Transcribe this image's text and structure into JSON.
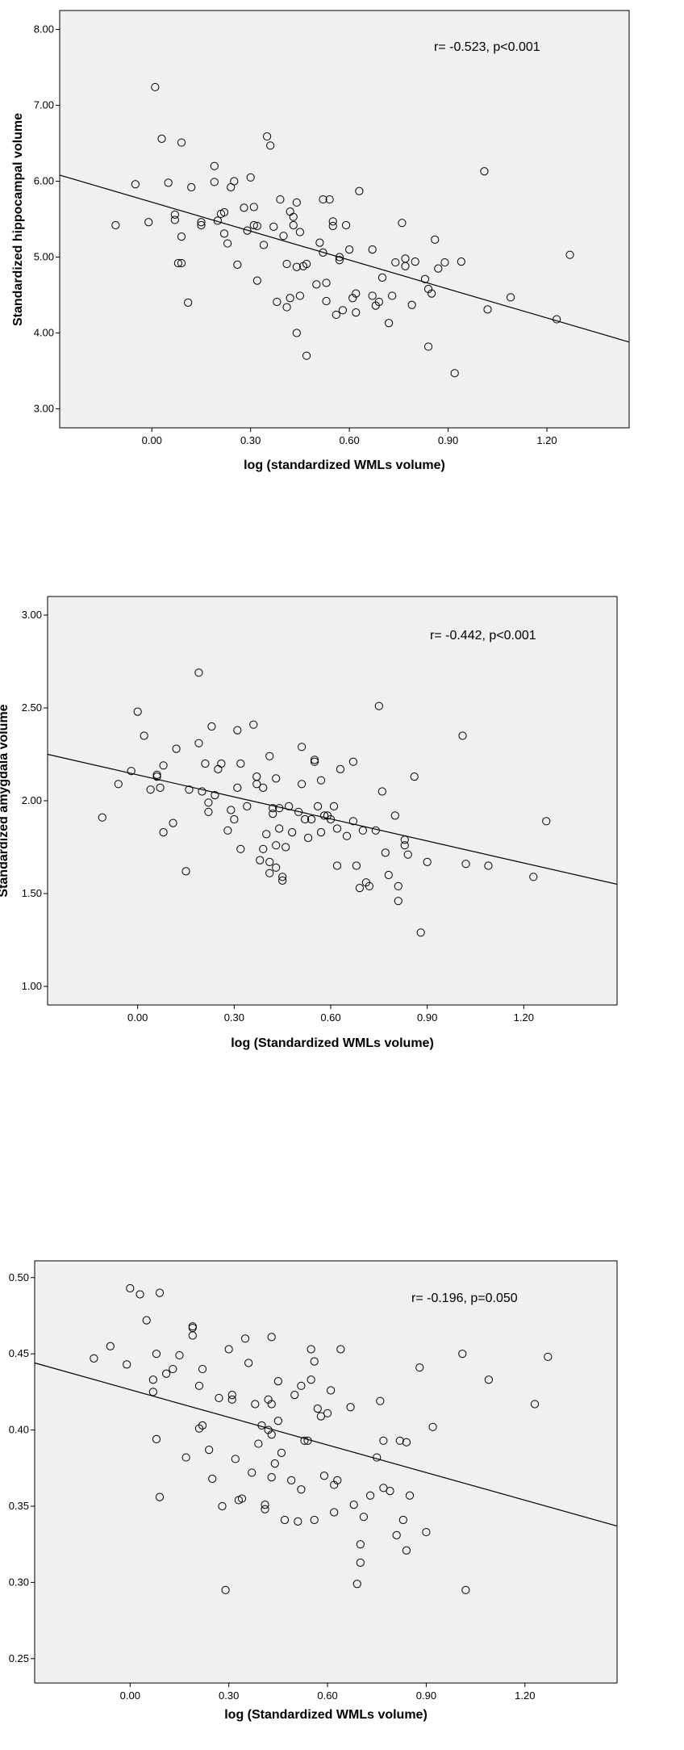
{
  "chart_data": [
    {
      "type": "scatter",
      "xlabel": "log (standardized WMLs volume)",
      "ylabel": "Standardized hippocampal volume",
      "annotation": "r= -0.523, p<0.001",
      "xlim": [
        -0.28,
        1.45
      ],
      "ylim": [
        2.75,
        8.25
      ],
      "xticks": [
        "0.00",
        "0.30",
        "0.60",
        "0.90",
        "1.20"
      ],
      "xtick_values": [
        0.0,
        0.3,
        0.6,
        0.9,
        1.2
      ],
      "yticks": [
        "3.00",
        "4.00",
        "5.00",
        "6.00",
        "7.00",
        "8.00"
      ],
      "ytick_values": [
        3,
        4,
        5,
        6,
        7,
        8
      ],
      "fit_line": [
        [
          -0.28,
          6.08
        ],
        [
          1.45,
          3.88
        ]
      ],
      "grid": false,
      "points": [
        [
          -0.11,
          5.42
        ],
        [
          -0.05,
          5.96
        ],
        [
          -0.01,
          5.46
        ],
        [
          0.01,
          7.24
        ],
        [
          0.03,
          6.56
        ],
        [
          0.05,
          5.98
        ],
        [
          0.07,
          5.56
        ],
        [
          0.07,
          5.49
        ],
        [
          0.08,
          4.92
        ],
        [
          0.09,
          4.92
        ],
        [
          0.09,
          6.51
        ],
        [
          0.09,
          5.27
        ],
        [
          0.11,
          4.4
        ],
        [
          0.12,
          5.92
        ],
        [
          0.15,
          5.42
        ],
        [
          0.15,
          5.46
        ],
        [
          0.19,
          6.2
        ],
        [
          0.19,
          5.99
        ],
        [
          0.2,
          5.48
        ],
        [
          0.21,
          5.57
        ],
        [
          0.22,
          5.59
        ],
        [
          0.22,
          5.31
        ],
        [
          0.23,
          5.18
        ],
        [
          0.24,
          5.92
        ],
        [
          0.25,
          6.0
        ],
        [
          0.26,
          4.9
        ],
        [
          0.28,
          5.65
        ],
        [
          0.29,
          5.35
        ],
        [
          0.3,
          6.05
        ],
        [
          0.31,
          5.42
        ],
        [
          0.31,
          5.66
        ],
        [
          0.32,
          5.41
        ],
        [
          0.32,
          4.69
        ],
        [
          0.34,
          5.16
        ],
        [
          0.35,
          6.59
        ],
        [
          0.36,
          6.47
        ],
        [
          0.37,
          5.4
        ],
        [
          0.38,
          4.41
        ],
        [
          0.39,
          5.76
        ],
        [
          0.4,
          5.28
        ],
        [
          0.41,
          4.91
        ],
        [
          0.41,
          4.34
        ],
        [
          0.42,
          4.46
        ],
        [
          0.42,
          5.6
        ],
        [
          0.43,
          5.53
        ],
        [
          0.43,
          5.42
        ],
        [
          0.44,
          5.72
        ],
        [
          0.44,
          4.0
        ],
        [
          0.44,
          4.87
        ],
        [
          0.45,
          5.33
        ],
        [
          0.45,
          4.49
        ],
        [
          0.46,
          4.88
        ],
        [
          0.47,
          3.7
        ],
        [
          0.47,
          4.91
        ],
        [
          0.5,
          4.64
        ],
        [
          0.51,
          5.19
        ],
        [
          0.52,
          5.06
        ],
        [
          0.52,
          5.76
        ],
        [
          0.53,
          4.66
        ],
        [
          0.53,
          4.42
        ],
        [
          0.54,
          5.76
        ],
        [
          0.55,
          5.47
        ],
        [
          0.55,
          5.41
        ],
        [
          0.56,
          4.24
        ],
        [
          0.57,
          5.0
        ],
        [
          0.57,
          4.96
        ],
        [
          0.58,
          4.3
        ],
        [
          0.59,
          5.42
        ],
        [
          0.6,
          5.1
        ],
        [
          0.61,
          4.46
        ],
        [
          0.62,
          4.27
        ],
        [
          0.62,
          4.52
        ],
        [
          0.63,
          5.87
        ],
        [
          0.67,
          5.1
        ],
        [
          0.67,
          4.49
        ],
        [
          0.68,
          4.36
        ],
        [
          0.69,
          4.41
        ],
        [
          0.7,
          4.73
        ],
        [
          0.72,
          4.13
        ],
        [
          0.73,
          4.49
        ],
        [
          0.74,
          4.93
        ],
        [
          0.76,
          5.45
        ],
        [
          0.77,
          4.98
        ],
        [
          0.77,
          4.88
        ],
        [
          0.79,
          4.37
        ],
        [
          0.8,
          4.94
        ],
        [
          0.83,
          4.71
        ],
        [
          0.84,
          4.58
        ],
        [
          0.84,
          3.82
        ],
        [
          0.85,
          4.52
        ],
        [
          0.86,
          5.23
        ],
        [
          0.87,
          4.85
        ],
        [
          0.89,
          4.93
        ],
        [
          0.92,
          3.47
        ],
        [
          0.94,
          4.94
        ],
        [
          1.01,
          6.13
        ],
        [
          1.02,
          4.31
        ],
        [
          1.09,
          4.47
        ],
        [
          1.23,
          4.18
        ],
        [
          1.27,
          5.03
        ]
      ]
    },
    {
      "type": "scatter",
      "xlabel": "log (Standardized WMLs volume)",
      "ylabel": "Standardized amygdala volume",
      "annotation": "r= -0.442, p<0.001",
      "xlim": [
        -0.28,
        1.49
      ],
      "ylim": [
        0.9,
        3.1
      ],
      "xticks": [
        "0.00",
        "0.30",
        "0.60",
        "0.90",
        "1.20"
      ],
      "xtick_values": [
        0.0,
        0.3,
        0.6,
        0.9,
        1.2
      ],
      "yticks": [
        "1.00",
        "1.50",
        "2.00",
        "2.50",
        "3.00"
      ],
      "ytick_values": [
        1.0,
        1.5,
        2.0,
        2.5,
        3.0
      ],
      "fit_line": [
        [
          -0.28,
          2.25
        ],
        [
          1.49,
          1.55
        ]
      ],
      "grid": false,
      "points": [
        [
          -0.11,
          1.91
        ],
        [
          -0.06,
          2.09
        ],
        [
          -0.02,
          2.16
        ],
        [
          0.0,
          2.48
        ],
        [
          0.02,
          2.35
        ],
        [
          0.04,
          2.06
        ],
        [
          0.06,
          2.14
        ],
        [
          0.06,
          2.13
        ],
        [
          0.07,
          2.07
        ],
        [
          0.08,
          2.19
        ],
        [
          0.08,
          1.83
        ],
        [
          0.11,
          1.88
        ],
        [
          0.12,
          2.28
        ],
        [
          0.15,
          1.62
        ],
        [
          0.16,
          2.06
        ],
        [
          0.19,
          2.69
        ],
        [
          0.19,
          2.31
        ],
        [
          0.2,
          2.05
        ],
        [
          0.21,
          2.2
        ],
        [
          0.22,
          1.94
        ],
        [
          0.22,
          1.99
        ],
        [
          0.23,
          2.4
        ],
        [
          0.24,
          2.03
        ],
        [
          0.25,
          2.17
        ],
        [
          0.26,
          2.2
        ],
        [
          0.28,
          1.84
        ],
        [
          0.29,
          1.95
        ],
        [
          0.3,
          1.9
        ],
        [
          0.31,
          2.07
        ],
        [
          0.31,
          2.38
        ],
        [
          0.32,
          2.2
        ],
        [
          0.32,
          1.74
        ],
        [
          0.34,
          1.97
        ],
        [
          0.36,
          2.41
        ],
        [
          0.37,
          2.13
        ],
        [
          0.37,
          2.09
        ],
        [
          0.38,
          1.68
        ],
        [
          0.39,
          2.07
        ],
        [
          0.39,
          1.74
        ],
        [
          0.4,
          1.82
        ],
        [
          0.41,
          1.67
        ],
        [
          0.41,
          1.61
        ],
        [
          0.41,
          2.24
        ],
        [
          0.42,
          1.96
        ],
        [
          0.42,
          1.93
        ],
        [
          0.43,
          1.76
        ],
        [
          0.43,
          2.12
        ],
        [
          0.43,
          1.64
        ],
        [
          0.44,
          1.96
        ],
        [
          0.44,
          1.85
        ],
        [
          0.45,
          1.57
        ],
        [
          0.45,
          1.59
        ],
        [
          0.46,
          1.75
        ],
        [
          0.47,
          1.97
        ],
        [
          0.48,
          1.83
        ],
        [
          0.5,
          1.94
        ],
        [
          0.51,
          2.09
        ],
        [
          0.51,
          2.29
        ],
        [
          0.52,
          1.9
        ],
        [
          0.53,
          1.8
        ],
        [
          0.54,
          1.9
        ],
        [
          0.55,
          2.21
        ],
        [
          0.55,
          2.22
        ],
        [
          0.56,
          1.97
        ],
        [
          0.57,
          1.83
        ],
        [
          0.57,
          2.11
        ],
        [
          0.58,
          1.92
        ],
        [
          0.59,
          1.92
        ],
        [
          0.6,
          1.9
        ],
        [
          0.61,
          1.97
        ],
        [
          0.62,
          1.85
        ],
        [
          0.62,
          1.65
        ],
        [
          0.63,
          2.17
        ],
        [
          0.65,
          1.81
        ],
        [
          0.67,
          2.21
        ],
        [
          0.67,
          1.89
        ],
        [
          0.68,
          1.65
        ],
        [
          0.69,
          1.53
        ],
        [
          0.7,
          1.84
        ],
        [
          0.71,
          1.56
        ],
        [
          0.72,
          1.54
        ],
        [
          0.74,
          1.84
        ],
        [
          0.75,
          2.51
        ],
        [
          0.76,
          2.05
        ],
        [
          0.77,
          1.72
        ],
        [
          0.78,
          1.6
        ],
        [
          0.8,
          1.92
        ],
        [
          0.81,
          1.54
        ],
        [
          0.81,
          1.46
        ],
        [
          0.83,
          1.79
        ],
        [
          0.83,
          1.76
        ],
        [
          0.84,
          1.71
        ],
        [
          0.86,
          2.13
        ],
        [
          0.88,
          1.29
        ],
        [
          0.9,
          1.67
        ],
        [
          1.01,
          2.35
        ],
        [
          1.02,
          1.66
        ],
        [
          1.09,
          1.65
        ],
        [
          1.23,
          1.59
        ],
        [
          1.27,
          1.89
        ]
      ]
    },
    {
      "type": "scatter",
      "xlabel": "log (Standardized WMLs volume)",
      "ylabel": "",
      "annotation": "r= -0.196, p=0.050",
      "xlim": [
        -0.29,
        1.48
      ],
      "ylim": [
        0.234,
        0.511
      ],
      "xticks": [
        "0.00",
        "0.30",
        "0.60",
        "0.90",
        "1.20"
      ],
      "xtick_values": [
        0.0,
        0.3,
        0.6,
        0.9,
        1.2
      ],
      "yticks": [
        "0.25",
        "0.30",
        "0.35",
        "0.40",
        "0.45",
        "0.50"
      ],
      "ytick_values": [
        0.25,
        0.3,
        0.35,
        0.4,
        0.45,
        0.5
      ],
      "fit_line": [
        [
          -0.29,
          0.444
        ],
        [
          1.48,
          0.337
        ]
      ],
      "grid": false,
      "points": [
        [
          -0.11,
          0.447
        ],
        [
          -0.06,
          0.455
        ],
        [
          -0.01,
          0.443
        ],
        [
          0.0,
          0.493
        ],
        [
          0.03,
          0.489
        ],
        [
          0.05,
          0.472
        ],
        [
          0.07,
          0.433
        ],
        [
          0.07,
          0.425
        ],
        [
          0.08,
          0.394
        ],
        [
          0.08,
          0.45
        ],
        [
          0.09,
          0.49
        ],
        [
          0.09,
          0.356
        ],
        [
          0.11,
          0.437
        ],
        [
          0.13,
          0.44
        ],
        [
          0.15,
          0.449
        ],
        [
          0.17,
          0.382
        ],
        [
          0.19,
          0.468
        ],
        [
          0.19,
          0.467
        ],
        [
          0.19,
          0.462
        ],
        [
          0.21,
          0.429
        ],
        [
          0.21,
          0.401
        ],
        [
          0.22,
          0.44
        ],
        [
          0.22,
          0.403
        ],
        [
          0.24,
          0.387
        ],
        [
          0.25,
          0.368
        ],
        [
          0.27,
          0.421
        ],
        [
          0.28,
          0.35
        ],
        [
          0.29,
          0.295
        ],
        [
          0.3,
          0.453
        ],
        [
          0.31,
          0.423
        ],
        [
          0.31,
          0.42
        ],
        [
          0.32,
          0.381
        ],
        [
          0.33,
          0.354
        ],
        [
          0.34,
          0.355
        ],
        [
          0.35,
          0.46
        ],
        [
          0.36,
          0.444
        ],
        [
          0.37,
          0.372
        ],
        [
          0.38,
          0.417
        ],
        [
          0.39,
          0.391
        ],
        [
          0.4,
          0.403
        ],
        [
          0.41,
          0.351
        ],
        [
          0.41,
          0.348
        ],
        [
          0.42,
          0.42
        ],
        [
          0.42,
          0.4
        ],
        [
          0.43,
          0.461
        ],
        [
          0.43,
          0.417
        ],
        [
          0.43,
          0.397
        ],
        [
          0.43,
          0.369
        ],
        [
          0.44,
          0.378
        ],
        [
          0.45,
          0.406
        ],
        [
          0.45,
          0.432
        ],
        [
          0.46,
          0.385
        ],
        [
          0.47,
          0.341
        ],
        [
          0.49,
          0.367
        ],
        [
          0.5,
          0.423
        ],
        [
          0.51,
          0.34
        ],
        [
          0.52,
          0.429
        ],
        [
          0.52,
          0.361
        ],
        [
          0.53,
          0.393
        ],
        [
          0.54,
          0.393
        ],
        [
          0.55,
          0.433
        ],
        [
          0.55,
          0.453
        ],
        [
          0.56,
          0.445
        ],
        [
          0.56,
          0.341
        ],
        [
          0.57,
          0.414
        ],
        [
          0.58,
          0.409
        ],
        [
          0.59,
          0.37
        ],
        [
          0.6,
          0.411
        ],
        [
          0.61,
          0.426
        ],
        [
          0.62,
          0.364
        ],
        [
          0.62,
          0.346
        ],
        [
          0.63,
          0.367
        ],
        [
          0.64,
          0.453
        ],
        [
          0.67,
          0.415
        ],
        [
          0.68,
          0.351
        ],
        [
          0.69,
          0.299
        ],
        [
          0.7,
          0.313
        ],
        [
          0.7,
          0.325
        ],
        [
          0.71,
          0.343
        ],
        [
          0.73,
          0.357
        ],
        [
          0.75,
          0.382
        ],
        [
          0.76,
          0.419
        ],
        [
          0.77,
          0.393
        ],
        [
          0.77,
          0.362
        ],
        [
          0.79,
          0.36
        ],
        [
          0.81,
          0.331
        ],
        [
          0.82,
          0.393
        ],
        [
          0.83,
          0.341
        ],
        [
          0.84,
          0.321
        ],
        [
          0.84,
          0.392
        ],
        [
          0.85,
          0.357
        ],
        [
          0.88,
          0.441
        ],
        [
          0.9,
          0.333
        ],
        [
          0.92,
          0.402
        ],
        [
          1.01,
          0.45
        ],
        [
          1.02,
          0.295
        ],
        [
          1.09,
          0.433
        ],
        [
          1.23,
          0.417
        ],
        [
          1.27,
          0.448
        ]
      ]
    }
  ]
}
